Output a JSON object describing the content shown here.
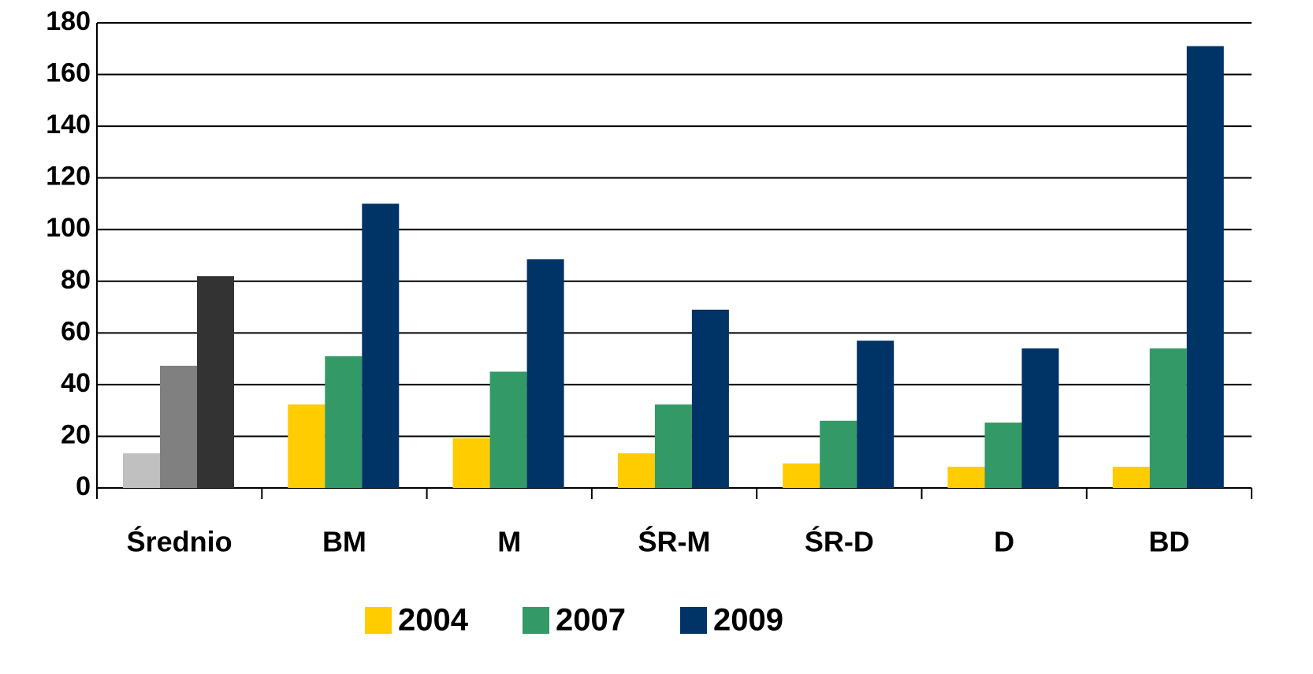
{
  "chart_data": {
    "type": "bar",
    "categories": [
      "Średnio",
      "BM",
      "M",
      "ŚR-M",
      "ŚR-D",
      "D",
      "BD"
    ],
    "series": [
      {
        "name": "2004",
        "color": "#ffcc00",
        "colors": [
          "#c0c0c0",
          "#ffcc00",
          "#ffcc00",
          "#ffcc00",
          "#ffcc00",
          "#ffcc00",
          "#ffcc00"
        ],
        "values": [
          13.4,
          32.3,
          19.2,
          13.4,
          9.5,
          8.2,
          8.2
        ]
      },
      {
        "name": "2007",
        "color": "#339966",
        "colors": [
          "#808080",
          "#339966",
          "#339966",
          "#339966",
          "#339966",
          "#339966",
          "#339966"
        ],
        "values": [
          47.3,
          51,
          45,
          32.3,
          26,
          25.3,
          54
        ]
      },
      {
        "name": "2009",
        "color": "#003366",
        "colors": [
          "#333333",
          "#003366",
          "#003366",
          "#003366",
          "#003366",
          "#003366",
          "#003366"
        ],
        "values": [
          82,
          110,
          88.5,
          69,
          57,
          54,
          171
        ]
      }
    ],
    "ylim": [
      0,
      180
    ],
    "yticks": [
      0,
      20,
      40,
      60,
      80,
      100,
      120,
      140,
      160,
      180
    ],
    "grid": true,
    "legend": "bottom"
  }
}
